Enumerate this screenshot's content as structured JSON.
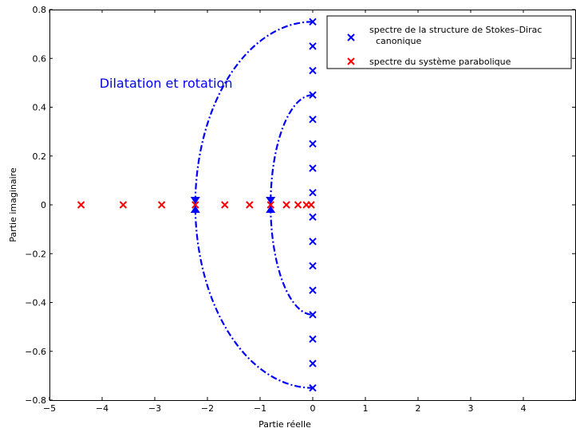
{
  "chart_data": {
    "type": "scatter",
    "title": "",
    "xlabel": "Partie réelle",
    "ylabel": "Partie imaginaire",
    "xlim": [
      -5,
      5
    ],
    "ylim": [
      -0.8,
      0.8
    ],
    "xticks": [
      "−5",
      "−4",
      "−3",
      "−2",
      "−1",
      "0",
      "1",
      "2",
      "3",
      "4"
    ],
    "xtick_values": [
      -5,
      -4,
      -3,
      -2,
      -1,
      0,
      1,
      2,
      3,
      4
    ],
    "yticks": [
      "−0.8",
      "−0.6",
      "−0.4",
      "−0.2",
      "0",
      "0.2",
      "0.4",
      "0.6",
      "0.8"
    ],
    "ytick_values": [
      -0.8,
      -0.6,
      -0.4,
      -0.2,
      0,
      0.2,
      0.4,
      0.6,
      0.8
    ],
    "grid": false,
    "legend_position": "top-right",
    "series": [
      {
        "name": "spectre de la structure de Stokes–Dirac",
        "name_line2": "canonique",
        "color": "#0000ff",
        "marker": "x",
        "points": [
          [
            0,
            0.75
          ],
          [
            0,
            0.65
          ],
          [
            0,
            0.55
          ],
          [
            0,
            0.45
          ],
          [
            0,
            0.35
          ],
          [
            0,
            0.25
          ],
          [
            0,
            0.15
          ],
          [
            0,
            0.05
          ],
          [
            0,
            -0.05
          ],
          [
            0,
            -0.15
          ],
          [
            0,
            -0.25
          ],
          [
            0,
            -0.35
          ],
          [
            0,
            -0.45
          ],
          [
            0,
            -0.55
          ],
          [
            0,
            -0.65
          ],
          [
            0,
            -0.75
          ]
        ]
      },
      {
        "name": "spectre du système parabolique",
        "color": "#ff0000",
        "marker": "x",
        "points": [
          [
            -4.4,
            0
          ],
          [
            -3.6,
            0
          ],
          [
            -2.87,
            0
          ],
          [
            -2.23,
            0
          ],
          [
            -1.67,
            0
          ],
          [
            -1.2,
            0
          ],
          [
            -0.8,
            0
          ],
          [
            -0.5,
            0
          ],
          [
            -0.28,
            0
          ],
          [
            -0.12,
            0
          ],
          [
            -0.03,
            0
          ]
        ]
      }
    ],
    "arcs": [
      {
        "color": "#0000ff",
        "x_min": -2.23,
        "x_max": 0,
        "y_half": 0.75
      },
      {
        "color": "#0000ff",
        "x_min": -0.8,
        "x_max": 0,
        "y_half": 0.45
      }
    ],
    "triangle_markers": [
      {
        "x": -2.23,
        "color": "#0000ff"
      },
      {
        "x": -0.8,
        "color": "#0000ff"
      }
    ],
    "annotation": {
      "text": "Dilatation et rotation",
      "x": -4.05,
      "y": 0.48,
      "color": "#0000ff"
    }
  }
}
